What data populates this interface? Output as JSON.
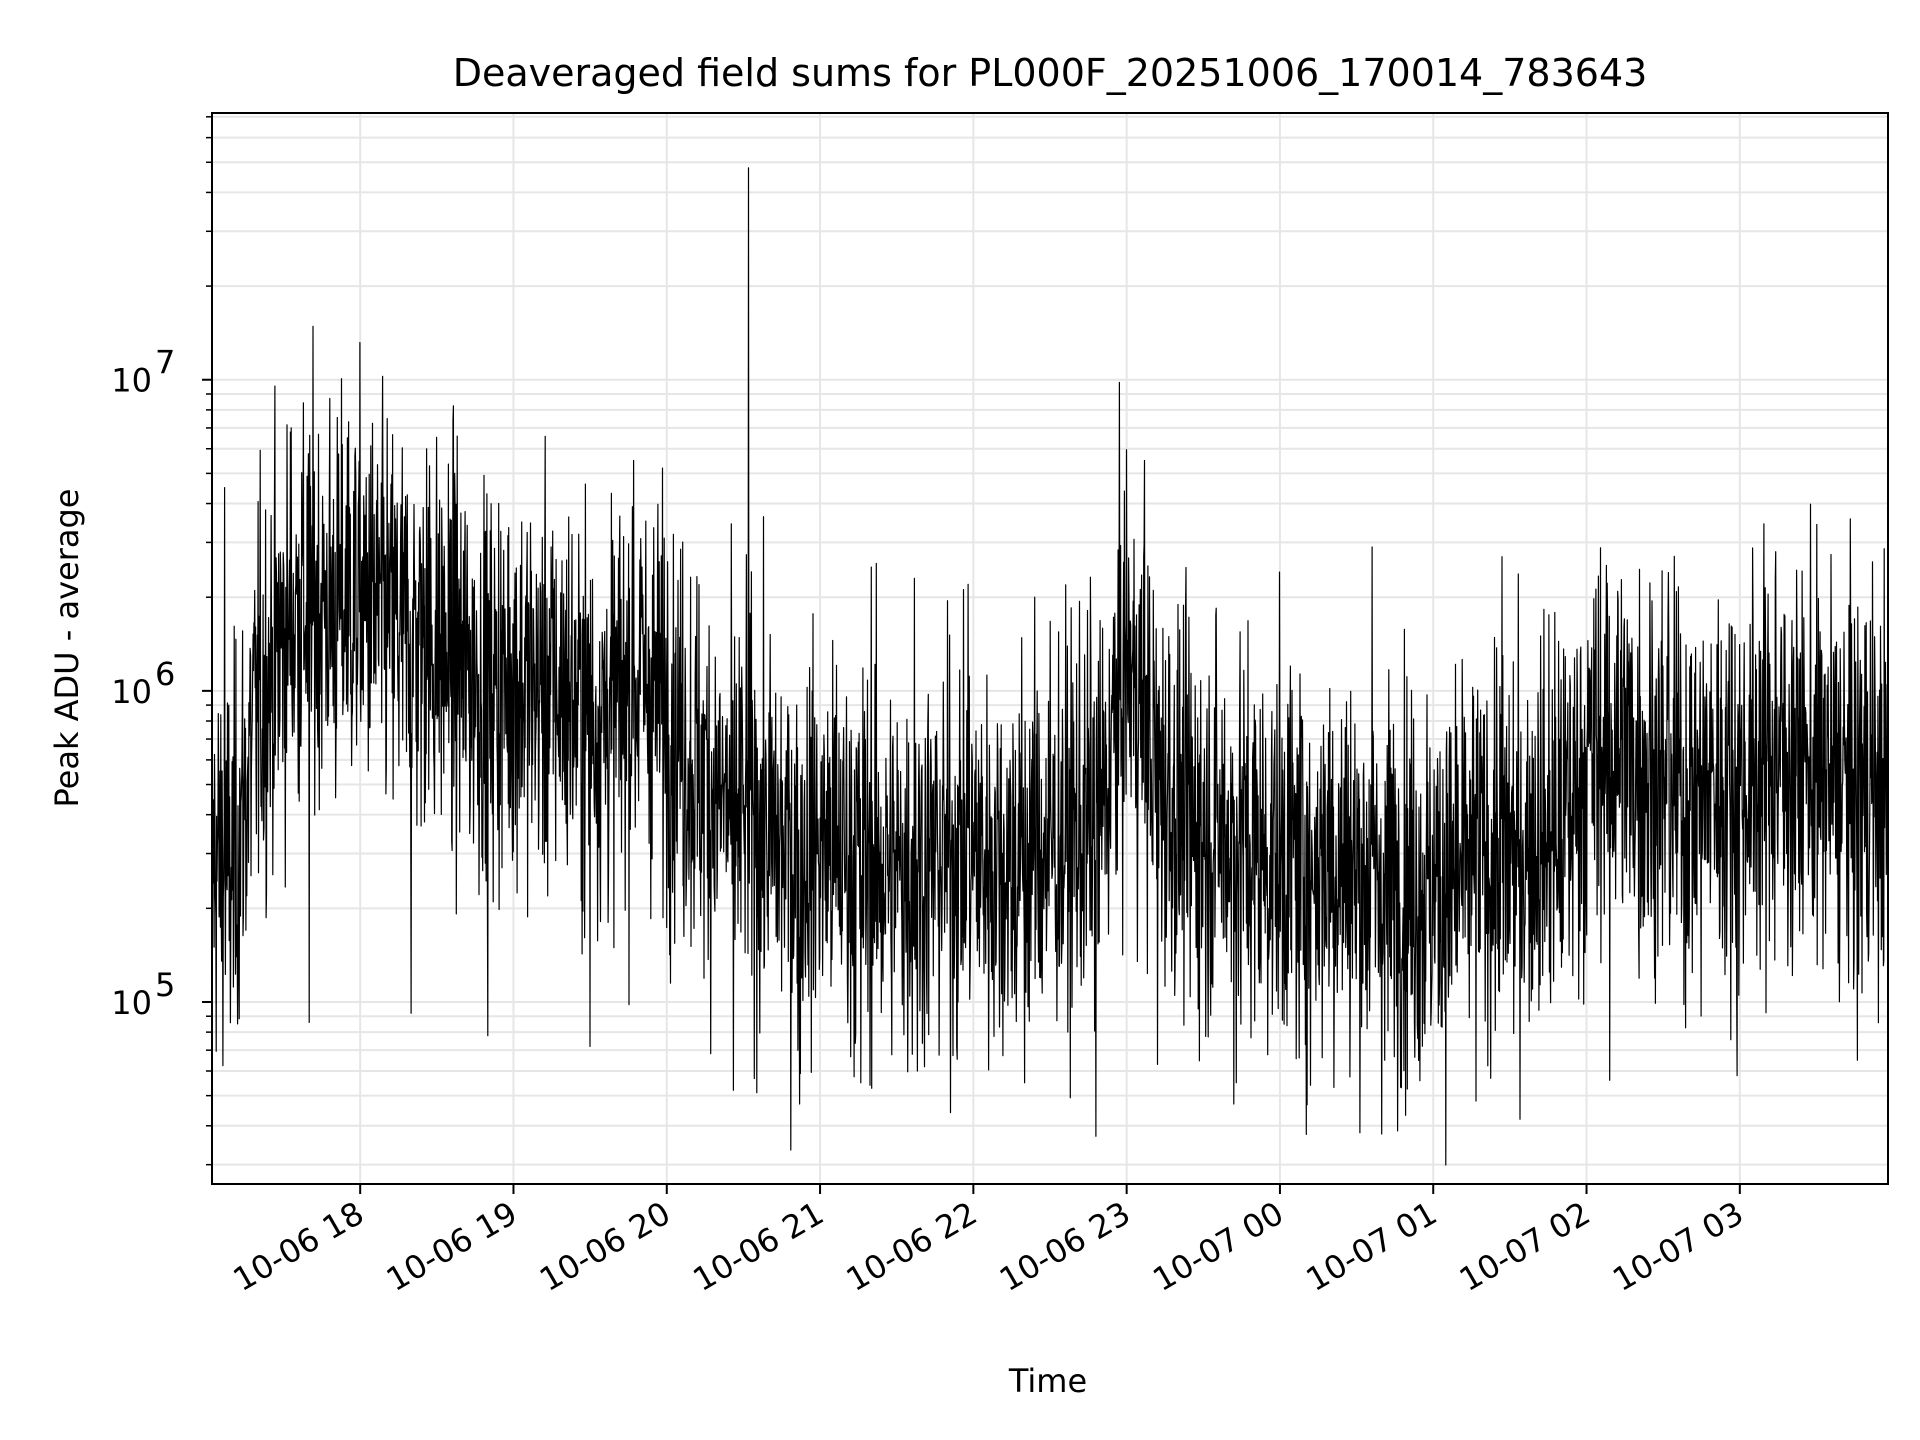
{
  "chart_data": {
    "type": "line",
    "title": "Deaveraged field sums for PL000F_20251006_170014_783643",
    "xlabel": "Time",
    "ylabel": "Peak ADU - average",
    "yscale": "log",
    "ylim": [
      26000,
      72000000
    ],
    "xlim": [
      "2025-10-06 17:02",
      "2025-10-07 03:58"
    ],
    "x_ticks": [
      {
        "t": "2025-10-06 18:00",
        "label": "10-06 18"
      },
      {
        "t": "2025-10-06 19:00",
        "label": "10-06 19"
      },
      {
        "t": "2025-10-06 20:00",
        "label": "10-06 20"
      },
      {
        "t": "2025-10-06 21:00",
        "label": "10-06 21"
      },
      {
        "t": "2025-10-06 22:00",
        "label": "10-06 22"
      },
      {
        "t": "2025-10-06 23:00",
        "label": "10-06 23"
      },
      {
        "t": "2025-10-07 00:00",
        "label": "10-07 00"
      },
      {
        "t": "2025-10-07 01:00",
        "label": "10-07 01"
      },
      {
        "t": "2025-10-07 02:00",
        "label": "10-07 02"
      },
      {
        "t": "2025-10-07 03:00",
        "label": "10-07 03"
      }
    ],
    "y_ticks": [
      {
        "value": 100000,
        "base": "10",
        "exp": "5"
      },
      {
        "value": 1000000,
        "base": "10",
        "exp": "6"
      },
      {
        "value": 10000000,
        "base": "10",
        "exp": "7"
      }
    ],
    "grid": true,
    "line_color": "#000000",
    "series": [
      {
        "x": [
          "2025-10-06 17:02",
          "2025-10-06 17:10",
          "2025-10-06 17:20",
          "2025-10-06 17:30",
          "2025-10-06 17:40",
          "2025-10-06 17:50",
          "2025-10-06 18:00",
          "2025-10-06 18:10",
          "2025-10-06 18:20",
          "2025-10-06 18:30",
          "2025-10-06 18:40",
          "2025-10-06 18:50",
          "2025-10-06 19:00",
          "2025-10-06 19:10",
          "2025-10-06 19:20",
          "2025-10-06 19:30",
          "2025-10-06 19:40",
          "2025-10-06 19:50",
          "2025-10-06 20:00",
          "2025-10-06 20:10",
          "2025-10-06 20:20",
          "2025-10-06 20:30",
          "2025-10-06 20:40",
          "2025-10-06 20:50",
          "2025-10-06 21:00",
          "2025-10-06 21:10",
          "2025-10-06 21:20",
          "2025-10-06 21:30",
          "2025-10-06 21:40",
          "2025-10-06 21:50",
          "2025-10-06 22:00",
          "2025-10-06 22:10",
          "2025-10-06 22:20",
          "2025-10-06 22:30",
          "2025-10-06 22:40",
          "2025-10-06 22:50",
          "2025-10-06 23:00",
          "2025-10-06 23:10",
          "2025-10-06 23:20",
          "2025-10-06 23:30",
          "2025-10-06 23:40",
          "2025-10-06 23:50",
          "2025-10-07 00:00",
          "2025-10-07 00:10",
          "2025-10-07 00:20",
          "2025-10-07 00:30",
          "2025-10-07 00:40",
          "2025-10-07 00:50",
          "2025-10-07 01:00",
          "2025-10-07 01:10",
          "2025-10-07 01:20",
          "2025-10-07 01:30",
          "2025-10-07 01:40",
          "2025-10-07 01:50",
          "2025-10-07 02:00",
          "2025-10-07 02:10",
          "2025-10-07 02:20",
          "2025-10-07 02:30",
          "2025-10-07 02:40",
          "2025-10-07 02:50",
          "2025-10-07 03:00",
          "2025-10-07 03:10",
          "2025-10-07 03:20",
          "2025-10-07 03:30",
          "2025-10-07 03:40",
          "2025-10-07 03:50",
          "2025-10-07 03:58"
        ],
        "y": [
          300000,
          250000,
          900000,
          1500000,
          2000000,
          1800000,
          2000000,
          1700000,
          1500000,
          1400000,
          1200000,
          1000000,
          1100000,
          1000000,
          1000000,
          800000,
          900000,
          1100000,
          900000,
          600000,
          450000,
          400000,
          350000,
          300000,
          320000,
          300000,
          280000,
          260000,
          280000,
          300000,
          300000,
          280000,
          300000,
          320000,
          350000,
          400000,
          1300000,
          600000,
          400000,
          350000,
          350000,
          300000,
          300000,
          280000,
          300000,
          260000,
          250000,
          250000,
          230000,
          250000,
          300000,
          300000,
          350000,
          350000,
          600000,
          700000,
          600000,
          500000,
          450000,
          500000,
          500000,
          600000,
          600000,
          550000,
          500000,
          500000,
          450000
        ],
        "noise_decades": 0.45,
        "peak_y": [
          4500000,
          7000000,
          6500000,
          6000000,
          5000000,
          5500000,
          48000000,
          2500000,
          2300000,
          2200000,
          2000000,
          5500000,
          1500000,
          2900000,
          2700000,
          3300000,
          2400000,
          2800000,
          2600000
        ],
        "peak_x": [
          "2025-10-06 17:07",
          "2025-10-06 17:33",
          "2025-10-06 17:55",
          "2025-10-06 18:26",
          "2025-10-06 18:37",
          "2025-10-06 19:47",
          "2025-10-06 20:32",
          "2025-10-06 21:20",
          "2025-10-06 21:37",
          "2025-10-06 21:58",
          "2025-10-06 22:24",
          "2025-10-06 23:07",
          "2025-10-06 23:42",
          "2025-10-07 00:36",
          "2025-10-07 01:27",
          "2025-10-07 02:09",
          "2025-10-07 02:32",
          "2025-10-07 03:14",
          "2025-10-07 03:52"
        ],
        "trough_y": [
          85000,
          86000,
          92000,
          78000,
          72000,
          52000,
          47000,
          55000,
          60000,
          55000,
          37000,
          63000,
          47000,
          54000,
          65000,
          42000,
          56000,
          58000,
          65000
        ],
        "trough_x": [
          "2025-10-06 17:12",
          "2025-10-06 17:40",
          "2025-10-06 18:20",
          "2025-10-06 18:50",
          "2025-10-06 19:30",
          "2025-10-06 20:26",
          "2025-10-06 20:52",
          "2025-10-06 21:16",
          "2025-10-06 21:38",
          "2025-10-06 22:20",
          "2025-10-06 22:48",
          "2025-10-06 23:12",
          "2025-10-06 23:42",
          "2025-10-07 00:12",
          "2025-10-07 00:41",
          "2025-10-07 01:34",
          "2025-10-07 02:09",
          "2025-10-07 02:59",
          "2025-10-07 03:46"
        ]
      }
    ]
  }
}
